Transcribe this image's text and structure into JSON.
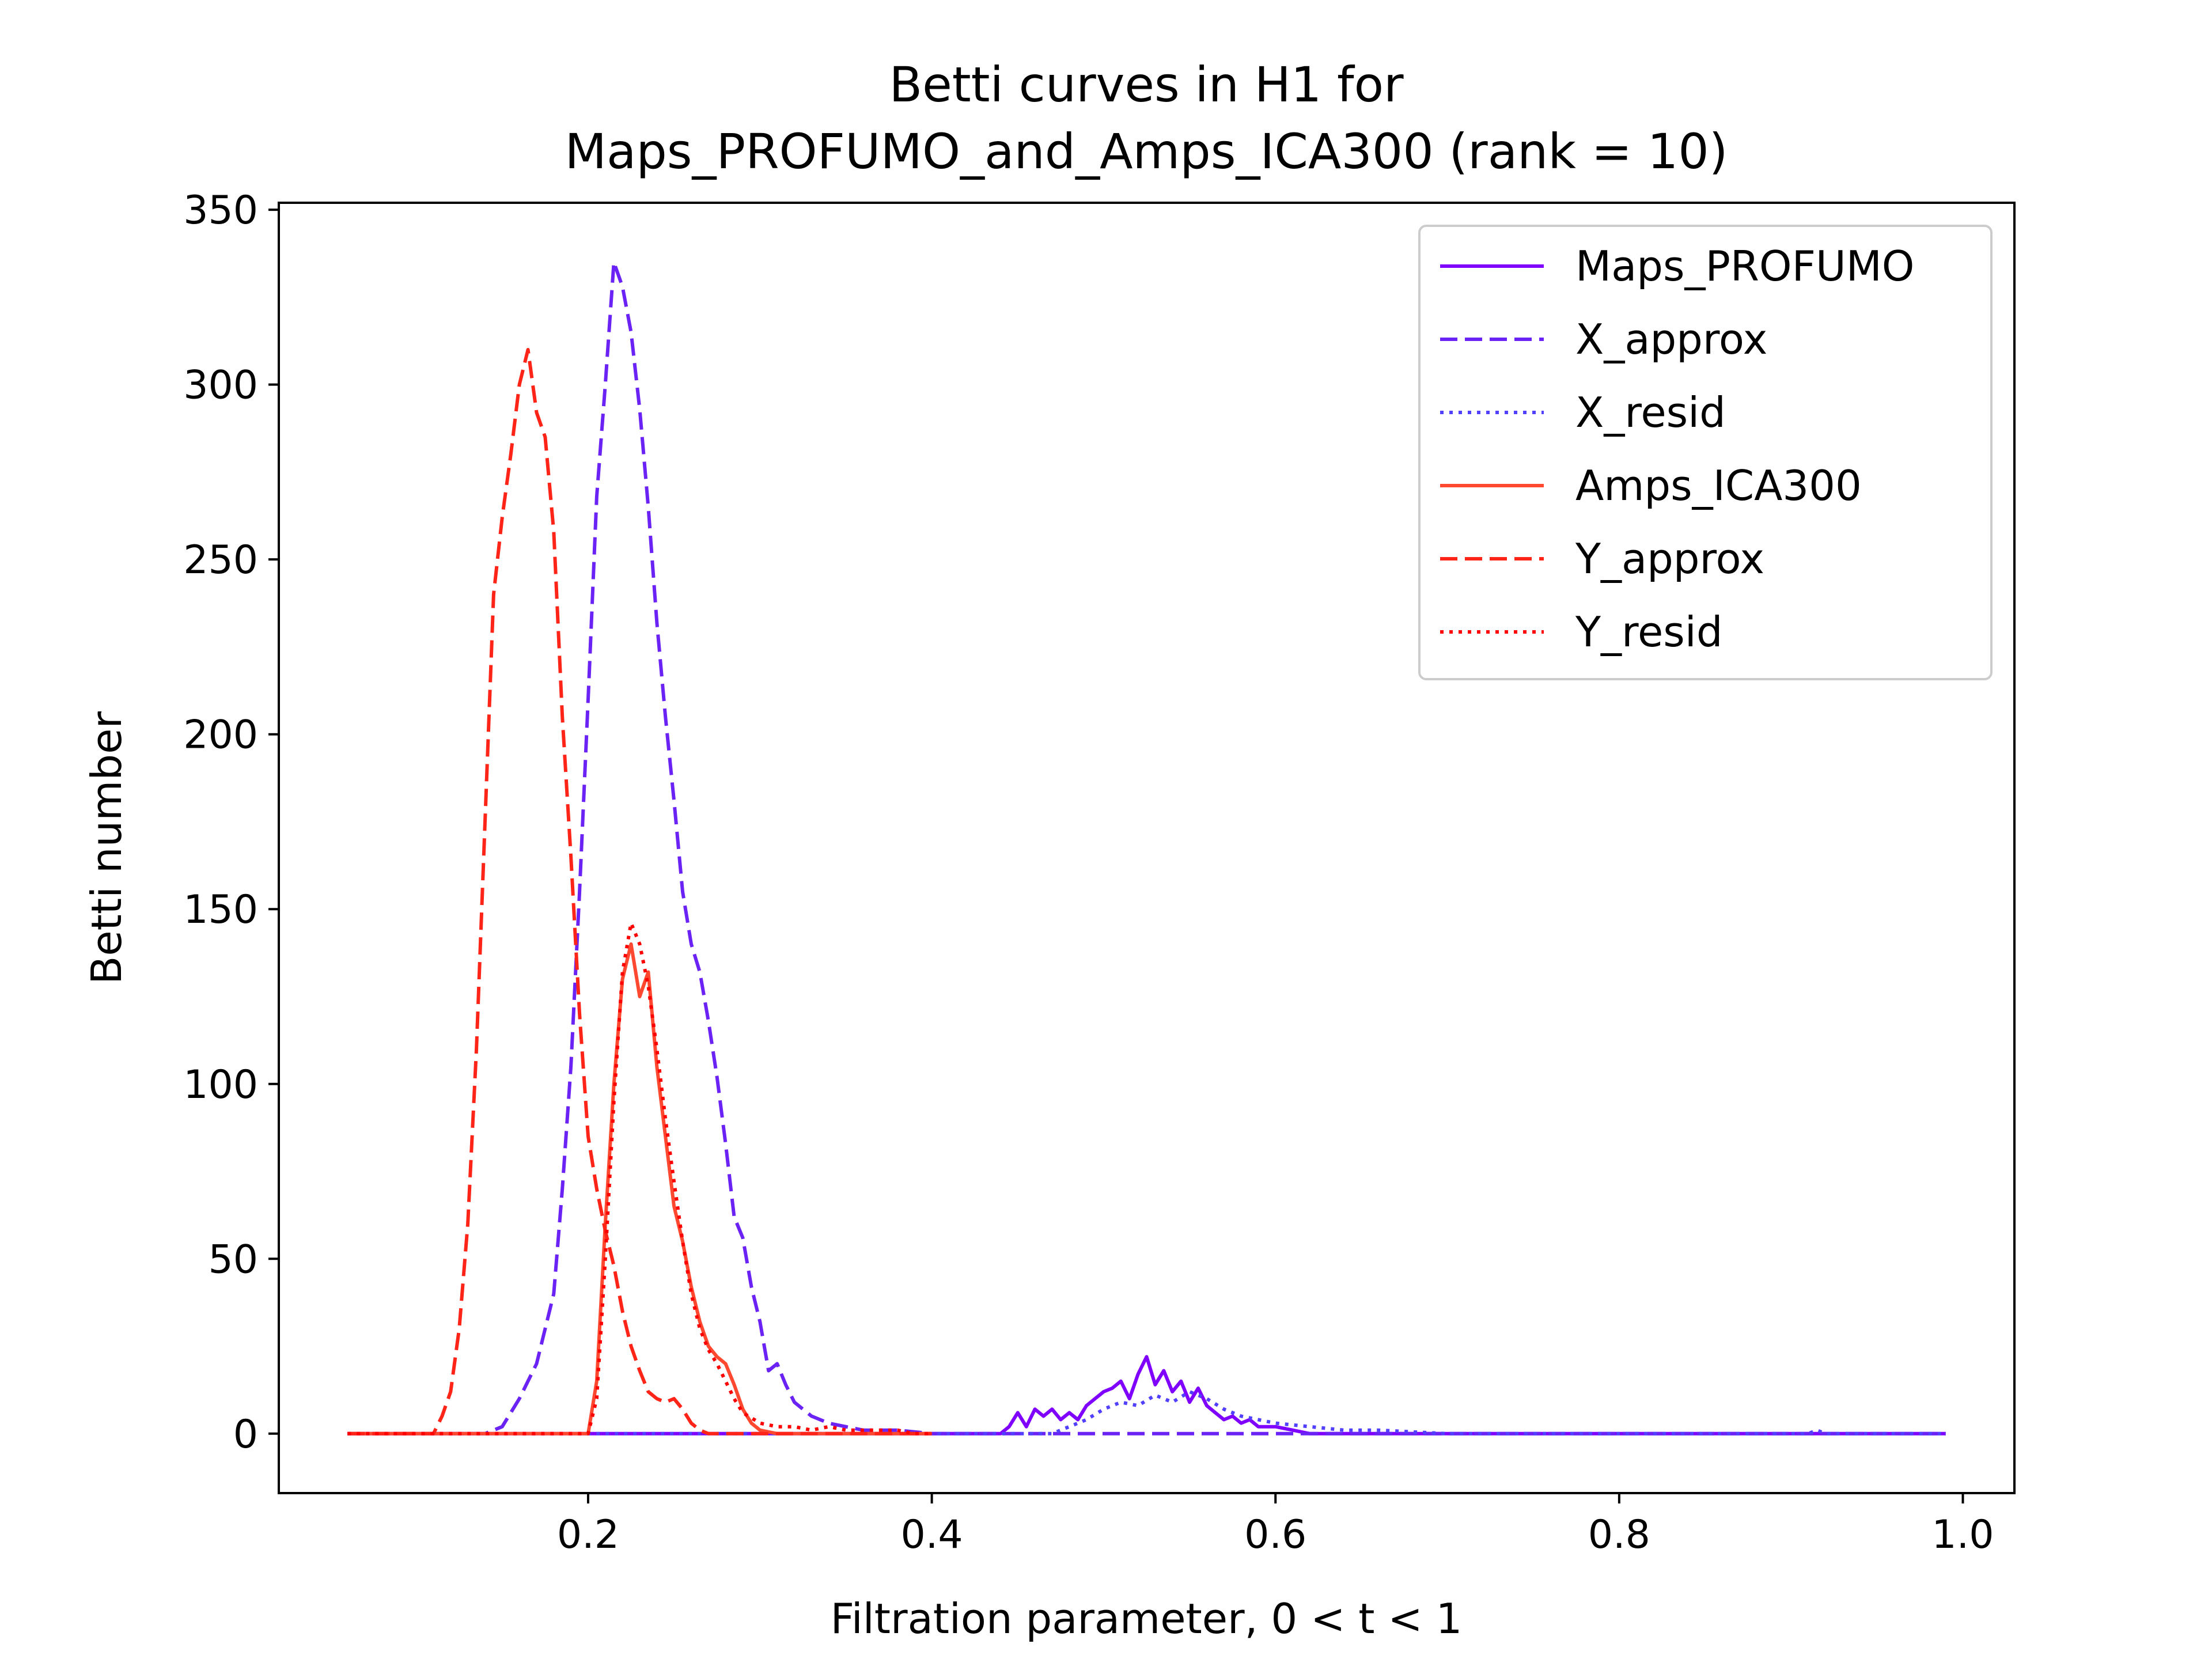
{
  "chart_data": {
    "type": "line",
    "title_line1": "Betti curves in H1 for",
    "title_line2": "Maps_PROFUMO_and_Amps_ICA300 (rank = 10)",
    "xlabel": "Filtration parameter, 0 < t < 1",
    "ylabel": "Betti number",
    "xlim": [
      0.02,
      1.03
    ],
    "ylim": [
      -17,
      352
    ],
    "xticks": [
      0.2,
      0.4,
      0.6,
      0.8,
      1.0
    ],
    "xtick_labels": [
      "0.2",
      "0.4",
      "0.6",
      "0.8",
      "1.0"
    ],
    "yticks": [
      0,
      50,
      100,
      150,
      200,
      250,
      300,
      350
    ],
    "ytick_labels": [
      "0",
      "50",
      "100",
      "150",
      "200",
      "250",
      "300",
      "350"
    ],
    "grid": false,
    "legend_position": "top-right",
    "series": [
      {
        "name": "Maps_PROFUMO",
        "color": "#7f00ff",
        "style": "solid",
        "points": [
          [
            0.06,
            0
          ],
          [
            0.44,
            0
          ],
          [
            0.445,
            2
          ],
          [
            0.45,
            6
          ],
          [
            0.455,
            2
          ],
          [
            0.46,
            7
          ],
          [
            0.465,
            5
          ],
          [
            0.47,
            7
          ],
          [
            0.475,
            4
          ],
          [
            0.48,
            6
          ],
          [
            0.485,
            4
          ],
          [
            0.49,
            8
          ],
          [
            0.495,
            10
          ],
          [
            0.5,
            12
          ],
          [
            0.505,
            13
          ],
          [
            0.51,
            15
          ],
          [
            0.515,
            10
          ],
          [
            0.52,
            17
          ],
          [
            0.525,
            22
          ],
          [
            0.53,
            14
          ],
          [
            0.535,
            18
          ],
          [
            0.54,
            12
          ],
          [
            0.545,
            15
          ],
          [
            0.55,
            9
          ],
          [
            0.555,
            13
          ],
          [
            0.56,
            8
          ],
          [
            0.565,
            6
          ],
          [
            0.57,
            4
          ],
          [
            0.575,
            5
          ],
          [
            0.58,
            3
          ],
          [
            0.585,
            4
          ],
          [
            0.59,
            2
          ],
          [
            0.6,
            2
          ],
          [
            0.61,
            1
          ],
          [
            0.62,
            0
          ],
          [
            0.99,
            0
          ]
        ]
      },
      {
        "name": "X_approx",
        "color": "#6a22f5",
        "style": "dashed",
        "points": [
          [
            0.06,
            0
          ],
          [
            0.14,
            0
          ],
          [
            0.15,
            2
          ],
          [
            0.16,
            10
          ],
          [
            0.17,
            20
          ],
          [
            0.18,
            40
          ],
          [
            0.185,
            70
          ],
          [
            0.19,
            105
          ],
          [
            0.195,
            155
          ],
          [
            0.2,
            210
          ],
          [
            0.205,
            268
          ],
          [
            0.21,
            300
          ],
          [
            0.215,
            335
          ],
          [
            0.22,
            328
          ],
          [
            0.225,
            315
          ],
          [
            0.23,
            293
          ],
          [
            0.235,
            265
          ],
          [
            0.24,
            232
          ],
          [
            0.245,
            205
          ],
          [
            0.25,
            181
          ],
          [
            0.255,
            155
          ],
          [
            0.26,
            140
          ],
          [
            0.265,
            132
          ],
          [
            0.27,
            118
          ],
          [
            0.275,
            102
          ],
          [
            0.28,
            83
          ],
          [
            0.285,
            62
          ],
          [
            0.29,
            56
          ],
          [
            0.295,
            42
          ],
          [
            0.3,
            32
          ],
          [
            0.305,
            18
          ],
          [
            0.31,
            20
          ],
          [
            0.315,
            14
          ],
          [
            0.32,
            9
          ],
          [
            0.33,
            5
          ],
          [
            0.34,
            3
          ],
          [
            0.35,
            2
          ],
          [
            0.36,
            1
          ],
          [
            0.38,
            1
          ],
          [
            0.4,
            0
          ],
          [
            0.99,
            0
          ]
        ]
      },
      {
        "name": "X_resid",
        "color": "#5240ff",
        "style": "dotted",
        "points": [
          [
            0.06,
            0
          ],
          [
            0.47,
            0
          ],
          [
            0.48,
            2
          ],
          [
            0.49,
            4
          ],
          [
            0.5,
            7
          ],
          [
            0.51,
            9
          ],
          [
            0.52,
            8
          ],
          [
            0.53,
            11
          ],
          [
            0.54,
            9
          ],
          [
            0.55,
            12
          ],
          [
            0.56,
            10
          ],
          [
            0.57,
            7
          ],
          [
            0.58,
            5
          ],
          [
            0.59,
            4
          ],
          [
            0.6,
            3
          ],
          [
            0.62,
            2
          ],
          [
            0.64,
            1
          ],
          [
            0.66,
            1
          ],
          [
            0.7,
            0
          ],
          [
            0.91,
            0
          ],
          [
            0.915,
            1
          ],
          [
            0.92,
            0
          ],
          [
            0.99,
            0
          ]
        ]
      },
      {
        "name": "Amps_ICA300",
        "color": "#ff4830",
        "style": "solid",
        "points": [
          [
            0.06,
            0
          ],
          [
            0.2,
            0
          ],
          [
            0.205,
            15
          ],
          [
            0.21,
            60
          ],
          [
            0.215,
            100
          ],
          [
            0.22,
            130
          ],
          [
            0.225,
            140
          ],
          [
            0.23,
            125
          ],
          [
            0.235,
            132
          ],
          [
            0.24,
            105
          ],
          [
            0.245,
            85
          ],
          [
            0.25,
            65
          ],
          [
            0.255,
            55
          ],
          [
            0.26,
            42
          ],
          [
            0.265,
            32
          ],
          [
            0.27,
            25
          ],
          [
            0.275,
            22
          ],
          [
            0.28,
            20
          ],
          [
            0.285,
            14
          ],
          [
            0.29,
            7
          ],
          [
            0.295,
            3
          ],
          [
            0.3,
            1
          ],
          [
            0.31,
            0
          ],
          [
            0.4,
            0
          ]
        ]
      },
      {
        "name": "Y_approx",
        "color": "#ff2418",
        "style": "dashed",
        "points": [
          [
            0.06,
            0
          ],
          [
            0.11,
            0
          ],
          [
            0.115,
            5
          ],
          [
            0.12,
            12
          ],
          [
            0.125,
            30
          ],
          [
            0.13,
            60
          ],
          [
            0.135,
            110
          ],
          [
            0.14,
            175
          ],
          [
            0.145,
            240
          ],
          [
            0.15,
            262
          ],
          [
            0.155,
            280
          ],
          [
            0.16,
            300
          ],
          [
            0.165,
            310
          ],
          [
            0.17,
            292
          ],
          [
            0.175,
            285
          ],
          [
            0.18,
            258
          ],
          [
            0.185,
            205
          ],
          [
            0.19,
            165
          ],
          [
            0.195,
            120
          ],
          [
            0.2,
            85
          ],
          [
            0.205,
            70
          ],
          [
            0.21,
            58
          ],
          [
            0.215,
            48
          ],
          [
            0.22,
            35
          ],
          [
            0.225,
            25
          ],
          [
            0.23,
            18
          ],
          [
            0.235,
            12
          ],
          [
            0.24,
            10
          ],
          [
            0.245,
            9
          ],
          [
            0.25,
            10
          ],
          [
            0.255,
            7
          ],
          [
            0.26,
            3
          ],
          [
            0.265,
            1
          ],
          [
            0.27,
            0
          ],
          [
            0.4,
            0
          ]
        ]
      },
      {
        "name": "Y_resid",
        "color": "#ff0000",
        "style": "dotted",
        "points": [
          [
            0.06,
            0
          ],
          [
            0.2,
            0
          ],
          [
            0.205,
            10
          ],
          [
            0.21,
            50
          ],
          [
            0.215,
            95
          ],
          [
            0.22,
            132
          ],
          [
            0.225,
            146
          ],
          [
            0.23,
            140
          ],
          [
            0.235,
            128
          ],
          [
            0.24,
            110
          ],
          [
            0.245,
            90
          ],
          [
            0.25,
            72
          ],
          [
            0.255,
            55
          ],
          [
            0.26,
            40
          ],
          [
            0.265,
            30
          ],
          [
            0.27,
            24
          ],
          [
            0.275,
            20
          ],
          [
            0.28,
            15
          ],
          [
            0.285,
            10
          ],
          [
            0.29,
            6
          ],
          [
            0.3,
            3
          ],
          [
            0.31,
            2
          ],
          [
            0.32,
            2
          ],
          [
            0.33,
            1
          ],
          [
            0.34,
            2
          ],
          [
            0.35,
            1
          ],
          [
            0.36,
            1
          ],
          [
            0.37,
            1
          ],
          [
            0.38,
            1
          ],
          [
            0.39,
            0
          ],
          [
            0.4,
            0
          ]
        ]
      }
    ]
  }
}
